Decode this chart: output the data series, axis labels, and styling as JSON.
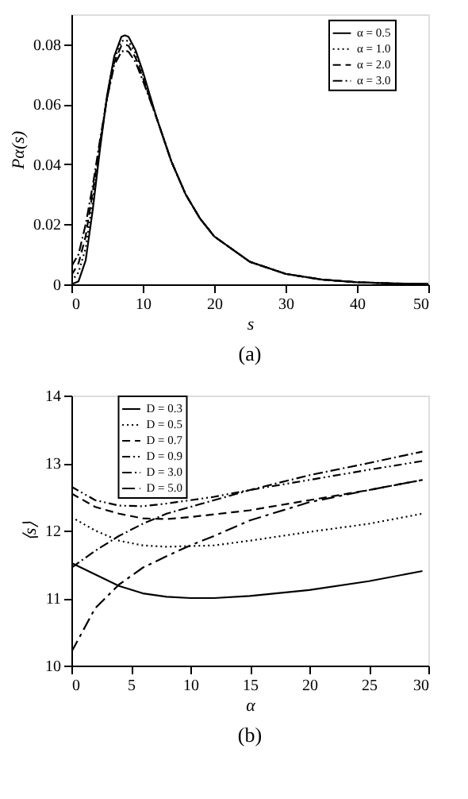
{
  "chart_data": [
    {
      "type": "line",
      "title": "(a)",
      "xlabel": "s",
      "ylabel": "Pα(s)",
      "xlim": [
        0,
        50
      ],
      "xticks": [
        0,
        10,
        20,
        30,
        40,
        50
      ],
      "ylim": [
        0,
        0.09
      ],
      "yticks": [
        0,
        0.02,
        0.04,
        0.06,
        0.08
      ],
      "grid": false,
      "legend": "top right",
      "x": [
        0,
        1,
        2,
        3,
        4,
        5,
        6,
        7,
        7.5,
        8,
        9,
        10,
        12,
        14,
        16,
        18,
        20,
        25,
        30,
        35,
        40,
        45,
        50
      ],
      "series": [
        {
          "name": "α = 0.5",
          "color": "#000000",
          "line_style": "solid",
          "values": [
            0,
            0.001,
            0.008,
            0.025,
            0.045,
            0.063,
            0.076,
            0.0825,
            0.083,
            0.0825,
            0.078,
            0.071,
            0.055,
            0.041,
            0.03,
            0.022,
            0.016,
            0.0075,
            0.0035,
            0.0016,
            0.0007,
            0.0003,
            0.0001
          ]
        },
        {
          "name": "α = 1.0",
          "color": "#000000",
          "line_style": "dotted",
          "values": [
            0.001,
            0.004,
            0.012,
            0.028,
            0.046,
            0.063,
            0.075,
            0.081,
            0.0815,
            0.081,
            0.077,
            0.07,
            0.055,
            0.041,
            0.03,
            0.022,
            0.016,
            0.0075,
            0.0035,
            0.0016,
            0.0007,
            0.0003,
            0.0001
          ]
        },
        {
          "name": "α = 2.0",
          "color": "#000000",
          "line_style": "dashed",
          "values": [
            0.003,
            0.007,
            0.016,
            0.031,
            0.047,
            0.062,
            0.074,
            0.0795,
            0.08,
            0.0795,
            0.0755,
            0.069,
            0.055,
            0.041,
            0.03,
            0.022,
            0.016,
            0.0075,
            0.0035,
            0.0016,
            0.0007,
            0.0003,
            0.0001
          ]
        },
        {
          "name": "α = 3.0",
          "color": "#000000",
          "line_style": "dashdot",
          "values": [
            0.006,
            0.01,
            0.02,
            0.033,
            0.048,
            0.062,
            0.073,
            0.0775,
            0.078,
            0.0775,
            0.074,
            0.068,
            0.055,
            0.041,
            0.03,
            0.022,
            0.016,
            0.0075,
            0.0035,
            0.0016,
            0.0007,
            0.0003,
            0.0001
          ]
        }
      ]
    },
    {
      "type": "line",
      "title": "(b)",
      "xlabel": "α",
      "ylabel": "⟨s⟩",
      "xlim": [
        0,
        30
      ],
      "xticks": [
        0,
        5,
        10,
        15,
        20,
        25,
        30
      ],
      "ylim": [
        10,
        14
      ],
      "yticks": [
        10,
        11,
        12,
        13,
        14
      ],
      "grid": false,
      "legend": "top left",
      "x": [
        0,
        2,
        4,
        6,
        8,
        10,
        12,
        15,
        20,
        25,
        29.5
      ],
      "series": [
        {
          "name": "D = 0.3",
          "color": "#000000",
          "line_style": "solid",
          "values": [
            11.52,
            11.35,
            11.18,
            11.07,
            11.02,
            11.0,
            11.0,
            11.03,
            11.12,
            11.25,
            11.4
          ]
        },
        {
          "name": "D = 0.5",
          "color": "#000000",
          "line_style": "dotted",
          "values": [
            12.2,
            12.0,
            11.85,
            11.78,
            11.76,
            11.77,
            11.78,
            11.85,
            11.98,
            12.1,
            12.25
          ]
        },
        {
          "name": "D = 0.7",
          "color": "#000000",
          "line_style": "dashed",
          "values": [
            12.55,
            12.35,
            12.25,
            12.18,
            12.17,
            12.2,
            12.24,
            12.3,
            12.45,
            12.6,
            12.75
          ]
        },
        {
          "name": "D = 0.9",
          "color": "#000000",
          "line_style": "dashdotdot",
          "values": [
            12.65,
            12.45,
            12.37,
            12.36,
            12.4,
            12.45,
            12.5,
            12.6,
            12.75,
            12.9,
            13.03
          ]
        },
        {
          "name": "D = 3.0",
          "color": "#000000",
          "line_style": "dashdot",
          "values": [
            11.45,
            11.7,
            11.92,
            12.1,
            12.25,
            12.35,
            12.45,
            12.6,
            12.82,
            13.0,
            13.17
          ]
        },
        {
          "name": "D = 5.0",
          "color": "#000000",
          "line_style": "longdashdot",
          "values": [
            10.2,
            10.85,
            11.2,
            11.45,
            11.62,
            11.78,
            11.92,
            12.15,
            12.42,
            12.6,
            12.75
          ]
        }
      ]
    }
  ]
}
